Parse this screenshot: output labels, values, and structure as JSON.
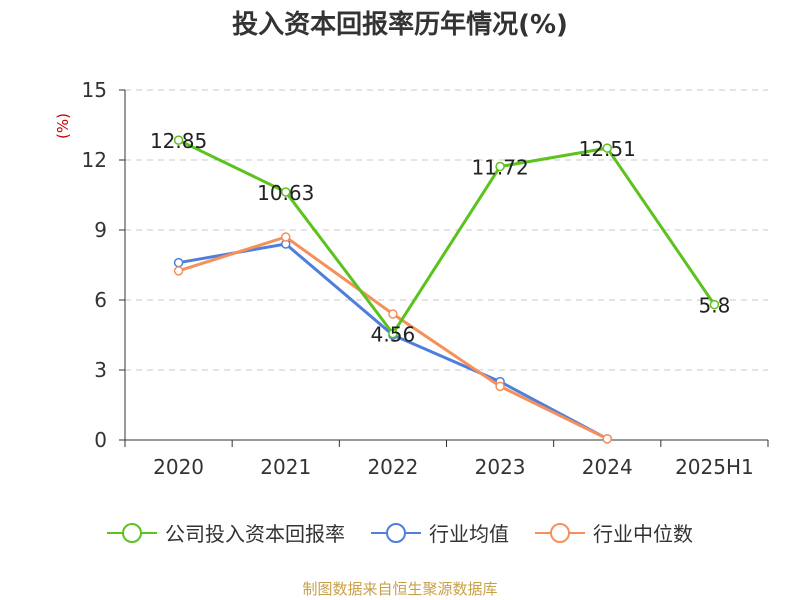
{
  "title": "投入资本回报率历年情况(%)",
  "source": "制图数据来自恒生聚源数据库",
  "chart_data": {
    "type": "line",
    "categories": [
      "2020",
      "2021",
      "2022",
      "2023",
      "2024",
      "2025H1"
    ],
    "ylabel": "(%)",
    "ylim": [
      0,
      15
    ],
    "yticks": [
      0,
      3,
      6,
      9,
      12,
      15
    ],
    "grid": true,
    "legend_position": "bottom",
    "series": [
      {
        "name": "公司投入资本回报率",
        "color": "#5cc21e",
        "values": [
          12.85,
          10.63,
          4.56,
          11.72,
          12.51,
          5.8
        ],
        "labels": [
          "12.85",
          "10.63",
          "4.56",
          "11.72",
          "12.51",
          "5.8"
        ]
      },
      {
        "name": "行业均值",
        "color": "#4f7fdb",
        "values": [
          7.6,
          8.4,
          4.5,
          2.5,
          0.05,
          null
        ]
      },
      {
        "name": "行业中位数",
        "color": "#f5905a",
        "values": [
          7.25,
          8.7,
          5.4,
          2.3,
          0.05,
          null
        ]
      }
    ]
  }
}
